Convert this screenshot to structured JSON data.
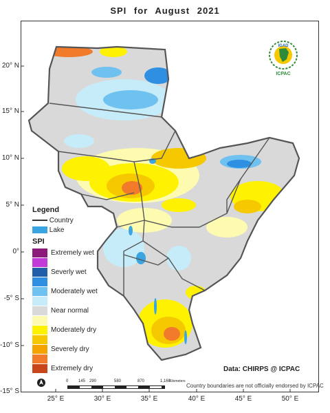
{
  "title": "SPI   for   August  2021",
  "lat_labels": [
    "20° N",
    "15° N",
    "10° N",
    "5° N",
    "0°",
    "-5° S",
    "-10° S",
    "-15° S"
  ],
  "lon_labels": [
    "25° E",
    "30° E",
    "35° E",
    "40° E",
    "45° E",
    "50° E"
  ],
  "legend": {
    "title": "Legend",
    "country_label": "Country",
    "lake_label": "Lake",
    "spi_title": "SPI",
    "classes": [
      {
        "label": "Extremely wet",
        "color": "#8b1a7a"
      },
      {
        "label": "",
        "color": "#c23bd9"
      },
      {
        "label": "Severly wet",
        "color": "#1f5fa8"
      },
      {
        "label": "",
        "color": "#2f8fe0"
      },
      {
        "label": "Moderately wet",
        "color": "#6fc1f0"
      },
      {
        "label": "",
        "color": "#c6ecf9"
      },
      {
        "label": "Near normal",
        "color": "#d9d9d9"
      },
      {
        "label": "",
        "color": "#fdfbb0"
      },
      {
        "label": "Moderately dry",
        "color": "#fef200"
      },
      {
        "label": "",
        "color": "#f6c800"
      },
      {
        "label": "Severely dry",
        "color": "#f4a200"
      },
      {
        "label": "",
        "color": "#f27b2b"
      },
      {
        "label": "Extremely dry",
        "color": "#c8461a"
      }
    ]
  },
  "lake_color": "#3aa5e0",
  "credit": "Data: CHIRPS @ ICPAC",
  "disclaimer": "Country boundaries are not officially endorsed by ICPAC",
  "scalebar": {
    "ticks": [
      "0",
      "145",
      "290",
      "580",
      "870",
      "1,160"
    ],
    "unit": "Kilometers"
  },
  "logo": {
    "name": "IGAD",
    "subtitle": "ICPAC"
  }
}
